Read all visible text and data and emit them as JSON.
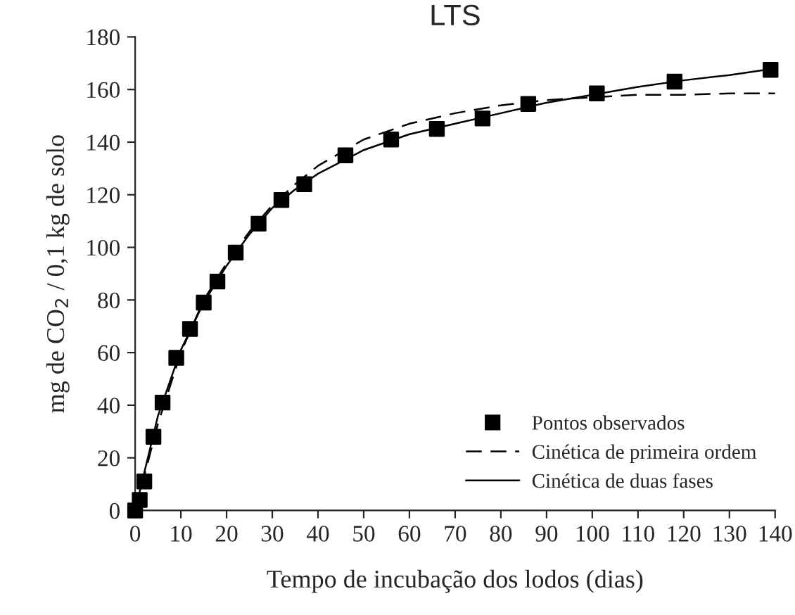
{
  "chart_data": {
    "type": "line",
    "title": "LTS",
    "xlabel": "Tempo de incubação dos lodos (dias)",
    "ylabel": "mg de CO$_{2}$ / 0,1 kg de solo",
    "xlim": [
      0,
      140
    ],
    "xticks": [
      0,
      10,
      20,
      30,
      40,
      50,
      60,
      70,
      80,
      90,
      100,
      110,
      120,
      130,
      140
    ],
    "ylim": [
      0,
      180
    ],
    "yticks": [
      0,
      20,
      40,
      60,
      80,
      100,
      120,
      140,
      160,
      180
    ],
    "grid": false,
    "legend": "bottom right",
    "series": [
      {
        "name": "Pontos observados",
        "type": "scatter",
        "marker": "square",
        "color": "#000000",
        "x": [
          0,
          1,
          2,
          4,
          6,
          9,
          12,
          15,
          18,
          22,
          27,
          32,
          37,
          46,
          56,
          66,
          76,
          86,
          101,
          118,
          139
        ],
        "values": [
          0,
          4,
          11,
          28,
          41,
          58,
          69,
          79,
          87,
          98,
          109,
          118,
          124,
          135,
          141,
          145,
          149,
          154.5,
          158.5,
          163,
          167.5
        ]
      },
      {
        "name": "Cinética de primeira ordem",
        "line_style": "dashed",
        "color": "#000000",
        "x": [
          0,
          5,
          10,
          15,
          20,
          25,
          30,
          35,
          40,
          50,
          60,
          70,
          80,
          90,
          100,
          110,
          120,
          130,
          140
        ],
        "values": [
          0,
          33,
          60,
          80,
          94,
          106,
          116,
          124,
          131,
          141,
          147,
          151,
          154,
          156,
          157,
          158,
          158,
          158.5,
          158.5
        ]
      },
      {
        "name": "Cinética de duas fases",
        "line_style": "solid",
        "color": "#000000",
        "x": [
          0,
          5,
          10,
          15,
          20,
          25,
          30,
          35,
          40,
          50,
          60,
          70,
          80,
          90,
          100,
          110,
          120,
          130,
          140
        ],
        "values": [
          0,
          36,
          61,
          79,
          93,
          105,
          115,
          122,
          128,
          137,
          143,
          147,
          151,
          155,
          158,
          161,
          163.5,
          165.5,
          168
        ]
      }
    ]
  }
}
